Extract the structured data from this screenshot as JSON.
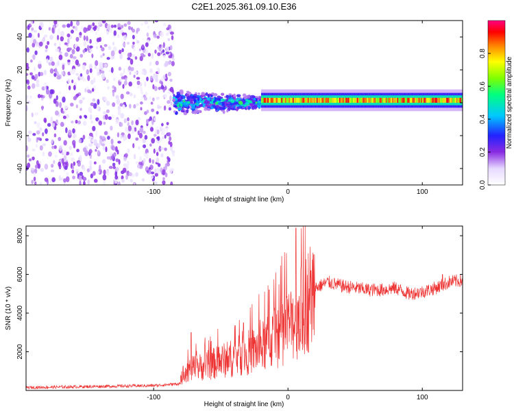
{
  "title": "C2E1.2025.361.09.10.E36",
  "chart_data": [
    {
      "type": "heatmap",
      "name": "spectrogram",
      "xlabel": "Height of straight line (km)",
      "ylabel": "Frequency (Hz)",
      "xlim": [
        -195,
        130
      ],
      "ylim": [
        -50,
        50
      ],
      "xticks": [
        -100,
        0,
        100
      ],
      "yticks": [
        -40,
        -20,
        0,
        20,
        40
      ],
      "colorbar": {
        "label": "Normalized spectral amplitude",
        "range": [
          0,
          1
        ],
        "ticks": [
          0.0,
          0.2,
          0.4,
          0.6,
          0.8
        ]
      },
      "features": [
        {
          "description": "Broadband noise",
          "x_range": [
            -195,
            -85
          ],
          "freq_range": [
            -50,
            50
          ],
          "level": 0.12
        },
        {
          "description": "Signal onset",
          "x_range": [
            -85,
            -20
          ],
          "freq_center": 0,
          "freq_halfwidth": 8,
          "level": 0.35
        },
        {
          "description": "Narrow carrier",
          "x_range": [
            -20,
            130
          ],
          "freq_center": 1.5,
          "freq_halfwidth": 3,
          "level": 0.9
        }
      ]
    },
    {
      "type": "line",
      "name": "snr",
      "xlabel": "Height of straight line (km)",
      "ylabel": "SNR (10 * v/v)",
      "xlim": [
        -195,
        130
      ],
      "ylim": [
        0,
        8500
      ],
      "xticks": [
        -100,
        0,
        100
      ],
      "yticks": [
        2000,
        4000,
        6000,
        8000
      ],
      "color": "#ee3333",
      "envelope": {
        "x": [
          -195,
          -150,
          -100,
          -80,
          -78,
          -60,
          -40,
          -20,
          -10,
          0,
          5,
          10,
          15,
          20,
          30,
          40,
          50,
          60,
          70,
          80,
          90,
          100,
          110,
          120,
          130
        ],
        "y": [
          150,
          200,
          250,
          350,
          1000,
          1300,
          1700,
          2200,
          2700,
          3300,
          3700,
          4100,
          4700,
          5300,
          5600,
          5400,
          5300,
          5200,
          5200,
          5300,
          5000,
          5100,
          5300,
          5600,
          5700
        ]
      },
      "spikes": [
        {
          "x": -72,
          "y": 3000
        },
        {
          "x": -33,
          "y": 3500
        },
        {
          "x": -14,
          "y": 5200
        },
        {
          "x": 3,
          "y": 4500
        },
        {
          "x": 6,
          "y": 8400
        },
        {
          "x": 17,
          "y": 6200
        },
        {
          "x": 115,
          "y": 6000
        }
      ]
    }
  ]
}
